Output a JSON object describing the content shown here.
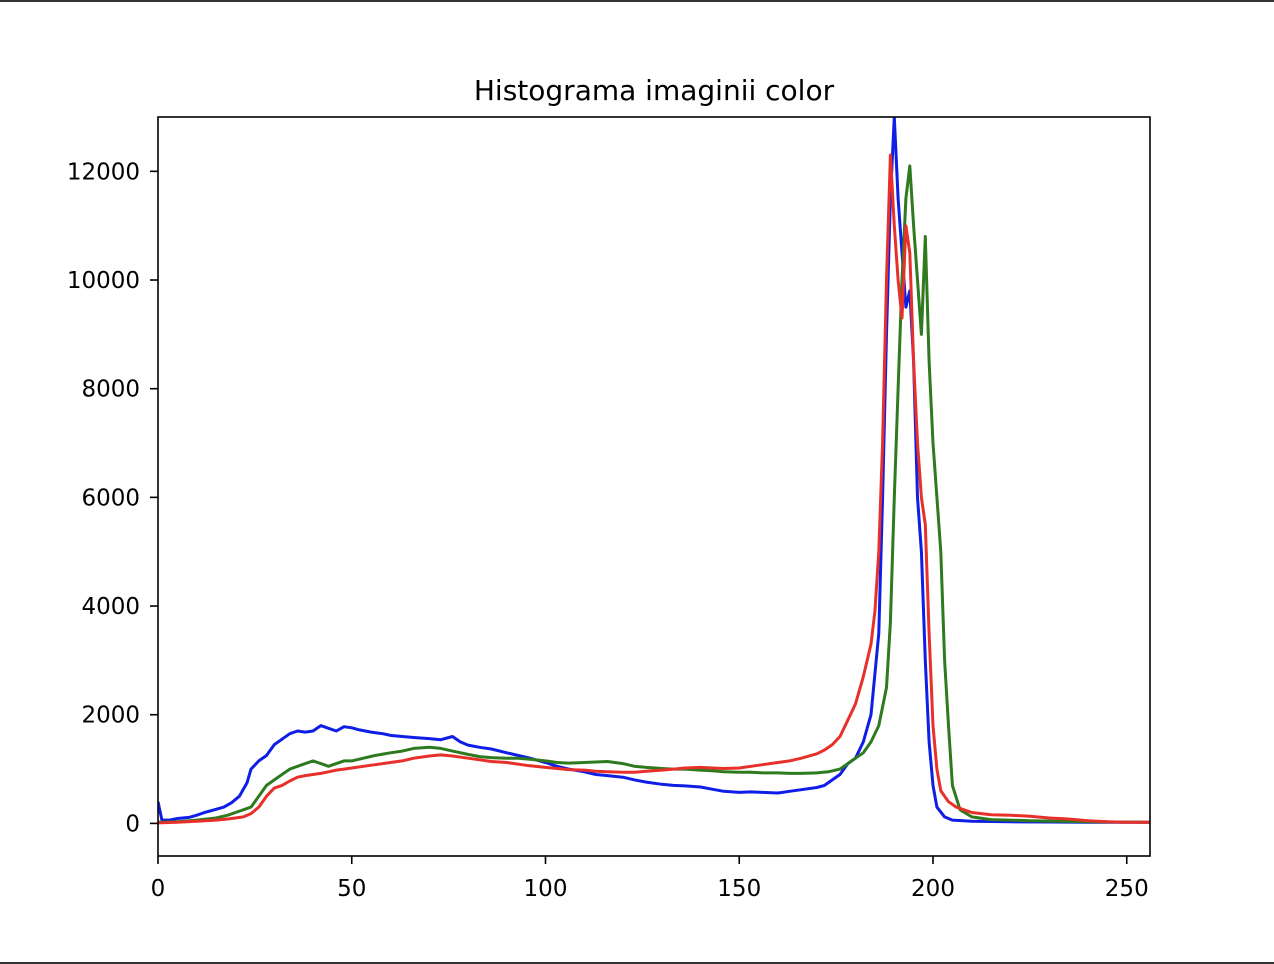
{
  "chart_data": {
    "type": "line",
    "title": "Histograma imaginii color",
    "xlabel": "",
    "ylabel": "",
    "xlim": [
      0,
      256
    ],
    "ylim": [
      -600,
      13000
    ],
    "xticks": [
      0,
      50,
      100,
      150,
      200,
      250
    ],
    "yticks": [
      0,
      2000,
      4000,
      6000,
      8000,
      10000,
      12000
    ],
    "grid": false,
    "legend": "none",
    "series": [
      {
        "color": "#0f1ee6",
        "points": [
          [
            0,
            400
          ],
          [
            1,
            60
          ],
          [
            3,
            60
          ],
          [
            5,
            90
          ],
          [
            8,
            110
          ],
          [
            10,
            150
          ],
          [
            12,
            200
          ],
          [
            15,
            260
          ],
          [
            17,
            300
          ],
          [
            19,
            380
          ],
          [
            21,
            500
          ],
          [
            23,
            750
          ],
          [
            24,
            1000
          ],
          [
            26,
            1150
          ],
          [
            28,
            1250
          ],
          [
            30,
            1450
          ],
          [
            32,
            1550
          ],
          [
            34,
            1650
          ],
          [
            36,
            1700
          ],
          [
            38,
            1680
          ],
          [
            40,
            1700
          ],
          [
            42,
            1800
          ],
          [
            44,
            1750
          ],
          [
            46,
            1700
          ],
          [
            48,
            1780
          ],
          [
            50,
            1760
          ],
          [
            52,
            1720
          ],
          [
            55,
            1680
          ],
          [
            58,
            1650
          ],
          [
            60,
            1620
          ],
          [
            63,
            1600
          ],
          [
            66,
            1580
          ],
          [
            70,
            1560
          ],
          [
            73,
            1540
          ],
          [
            76,
            1600
          ],
          [
            78,
            1500
          ],
          [
            80,
            1440
          ],
          [
            83,
            1400
          ],
          [
            86,
            1370
          ],
          [
            90,
            1300
          ],
          [
            93,
            1250
          ],
          [
            96,
            1200
          ],
          [
            100,
            1120
          ],
          [
            103,
            1050
          ],
          [
            106,
            1000
          ],
          [
            110,
            950
          ],
          [
            113,
            900
          ],
          [
            116,
            880
          ],
          [
            120,
            850
          ],
          [
            123,
            800
          ],
          [
            126,
            760
          ],
          [
            130,
            720
          ],
          [
            133,
            700
          ],
          [
            136,
            690
          ],
          [
            140,
            670
          ],
          [
            143,
            630
          ],
          [
            146,
            590
          ],
          [
            150,
            570
          ],
          [
            153,
            580
          ],
          [
            156,
            570
          ],
          [
            160,
            560
          ],
          [
            163,
            590
          ],
          [
            166,
            620
          ],
          [
            170,
            660
          ],
          [
            172,
            700
          ],
          [
            174,
            800
          ],
          [
            176,
            900
          ],
          [
            178,
            1100
          ],
          [
            180,
            1200
          ],
          [
            182,
            1500
          ],
          [
            184,
            2000
          ],
          [
            186,
            3500
          ],
          [
            187,
            6000
          ],
          [
            188,
            9000
          ],
          [
            189,
            11500
          ],
          [
            190,
            13000
          ],
          [
            191,
            11500
          ],
          [
            192,
            10500
          ],
          [
            193,
            9500
          ],
          [
            194,
            9800
          ],
          [
            195,
            8500
          ],
          [
            196,
            6000
          ],
          [
            197,
            5000
          ],
          [
            198,
            3000
          ],
          [
            199,
            1500
          ],
          [
            200,
            700
          ],
          [
            201,
            300
          ],
          [
            203,
            120
          ],
          [
            205,
            60
          ],
          [
            210,
            40
          ],
          [
            220,
            30
          ],
          [
            230,
            25
          ],
          [
            240,
            20
          ],
          [
            256,
            20
          ]
        ]
      },
      {
        "color": "#2e7a1f",
        "points": [
          [
            0,
            20
          ],
          [
            5,
            30
          ],
          [
            10,
            60
          ],
          [
            15,
            100
          ],
          [
            18,
            150
          ],
          [
            20,
            200
          ],
          [
            22,
            250
          ],
          [
            24,
            300
          ],
          [
            26,
            500
          ],
          [
            28,
            700
          ],
          [
            30,
            800
          ],
          [
            32,
            900
          ],
          [
            34,
            1000
          ],
          [
            36,
            1050
          ],
          [
            38,
            1100
          ],
          [
            40,
            1150
          ],
          [
            42,
            1100
          ],
          [
            44,
            1050
          ],
          [
            46,
            1100
          ],
          [
            48,
            1150
          ],
          [
            50,
            1150
          ],
          [
            53,
            1200
          ],
          [
            56,
            1250
          ],
          [
            60,
            1300
          ],
          [
            63,
            1330
          ],
          [
            66,
            1380
          ],
          [
            70,
            1400
          ],
          [
            73,
            1380
          ],
          [
            76,
            1330
          ],
          [
            80,
            1270
          ],
          [
            83,
            1230
          ],
          [
            86,
            1210
          ],
          [
            90,
            1200
          ],
          [
            93,
            1200
          ],
          [
            96,
            1180
          ],
          [
            100,
            1150
          ],
          [
            103,
            1120
          ],
          [
            106,
            1110
          ],
          [
            110,
            1120
          ],
          [
            113,
            1130
          ],
          [
            116,
            1140
          ],
          [
            120,
            1100
          ],
          [
            123,
            1050
          ],
          [
            126,
            1030
          ],
          [
            130,
            1010
          ],
          [
            133,
            1000
          ],
          [
            136,
            1000
          ],
          [
            140,
            980
          ],
          [
            143,
            970
          ],
          [
            146,
            950
          ],
          [
            150,
            940
          ],
          [
            153,
            940
          ],
          [
            156,
            930
          ],
          [
            160,
            930
          ],
          [
            163,
            920
          ],
          [
            166,
            920
          ],
          [
            170,
            930
          ],
          [
            173,
            950
          ],
          [
            176,
            1000
          ],
          [
            178,
            1100
          ],
          [
            180,
            1200
          ],
          [
            182,
            1300
          ],
          [
            184,
            1500
          ],
          [
            186,
            1800
          ],
          [
            188,
            2500
          ],
          [
            189,
            3700
          ],
          [
            190,
            6000
          ],
          [
            191,
            8000
          ],
          [
            192,
            10000
          ],
          [
            193,
            11500
          ],
          [
            194,
            12100
          ],
          [
            195,
            11000
          ],
          [
            196,
            10000
          ],
          [
            197,
            9000
          ],
          [
            198,
            10800
          ],
          [
            199,
            8500
          ],
          [
            200,
            7000
          ],
          [
            201,
            6000
          ],
          [
            202,
            5000
          ],
          [
            203,
            3000
          ],
          [
            204,
            1800
          ],
          [
            205,
            700
          ],
          [
            207,
            250
          ],
          [
            210,
            120
          ],
          [
            215,
            70
          ],
          [
            225,
            50
          ],
          [
            240,
            30
          ],
          [
            256,
            20
          ]
        ]
      },
      {
        "color": "#e8302a",
        "points": [
          [
            0,
            10
          ],
          [
            5,
            20
          ],
          [
            10,
            40
          ],
          [
            15,
            60
          ],
          [
            18,
            80
          ],
          [
            20,
            100
          ],
          [
            22,
            120
          ],
          [
            24,
            180
          ],
          [
            26,
            300
          ],
          [
            28,
            500
          ],
          [
            30,
            650
          ],
          [
            32,
            700
          ],
          [
            34,
            780
          ],
          [
            36,
            850
          ],
          [
            38,
            880
          ],
          [
            40,
            900
          ],
          [
            42,
            920
          ],
          [
            44,
            950
          ],
          [
            46,
            980
          ],
          [
            48,
            1000
          ],
          [
            50,
            1020
          ],
          [
            53,
            1050
          ],
          [
            56,
            1080
          ],
          [
            60,
            1120
          ],
          [
            63,
            1150
          ],
          [
            66,
            1200
          ],
          [
            70,
            1240
          ],
          [
            73,
            1260
          ],
          [
            76,
            1240
          ],
          [
            80,
            1200
          ],
          [
            83,
            1170
          ],
          [
            86,
            1140
          ],
          [
            90,
            1120
          ],
          [
            93,
            1090
          ],
          [
            96,
            1060
          ],
          [
            100,
            1030
          ],
          [
            103,
            1010
          ],
          [
            106,
            990
          ],
          [
            110,
            980
          ],
          [
            113,
            960
          ],
          [
            116,
            950
          ],
          [
            120,
            940
          ],
          [
            123,
            940
          ],
          [
            126,
            960
          ],
          [
            130,
            980
          ],
          [
            133,
            1000
          ],
          [
            136,
            1020
          ],
          [
            140,
            1030
          ],
          [
            143,
            1020
          ],
          [
            146,
            1010
          ],
          [
            150,
            1020
          ],
          [
            153,
            1050
          ],
          [
            156,
            1080
          ],
          [
            160,
            1120
          ],
          [
            163,
            1150
          ],
          [
            166,
            1200
          ],
          [
            170,
            1280
          ],
          [
            172,
            1350
          ],
          [
            174,
            1450
          ],
          [
            176,
            1600
          ],
          [
            178,
            1900
          ],
          [
            180,
            2200
          ],
          [
            182,
            2700
          ],
          [
            184,
            3300
          ],
          [
            185,
            3900
          ],
          [
            186,
            5000
          ],
          [
            187,
            7000
          ],
          [
            188,
            10000
          ],
          [
            189,
            12300
          ],
          [
            190,
            11000
          ],
          [
            191,
            10000
          ],
          [
            192,
            9300
          ],
          [
            193,
            11000
          ],
          [
            194,
            10500
          ],
          [
            195,
            8500
          ],
          [
            196,
            7000
          ],
          [
            197,
            6000
          ],
          [
            198,
            5500
          ],
          [
            199,
            3500
          ],
          [
            200,
            1800
          ],
          [
            201,
            1000
          ],
          [
            202,
            600
          ],
          [
            204,
            400
          ],
          [
            206,
            300
          ],
          [
            210,
            200
          ],
          [
            215,
            160
          ],
          [
            220,
            150
          ],
          [
            225,
            130
          ],
          [
            230,
            100
          ],
          [
            235,
            80
          ],
          [
            240,
            50
          ],
          [
            245,
            30
          ],
          [
            250,
            20
          ],
          [
            256,
            20
          ]
        ]
      }
    ]
  }
}
